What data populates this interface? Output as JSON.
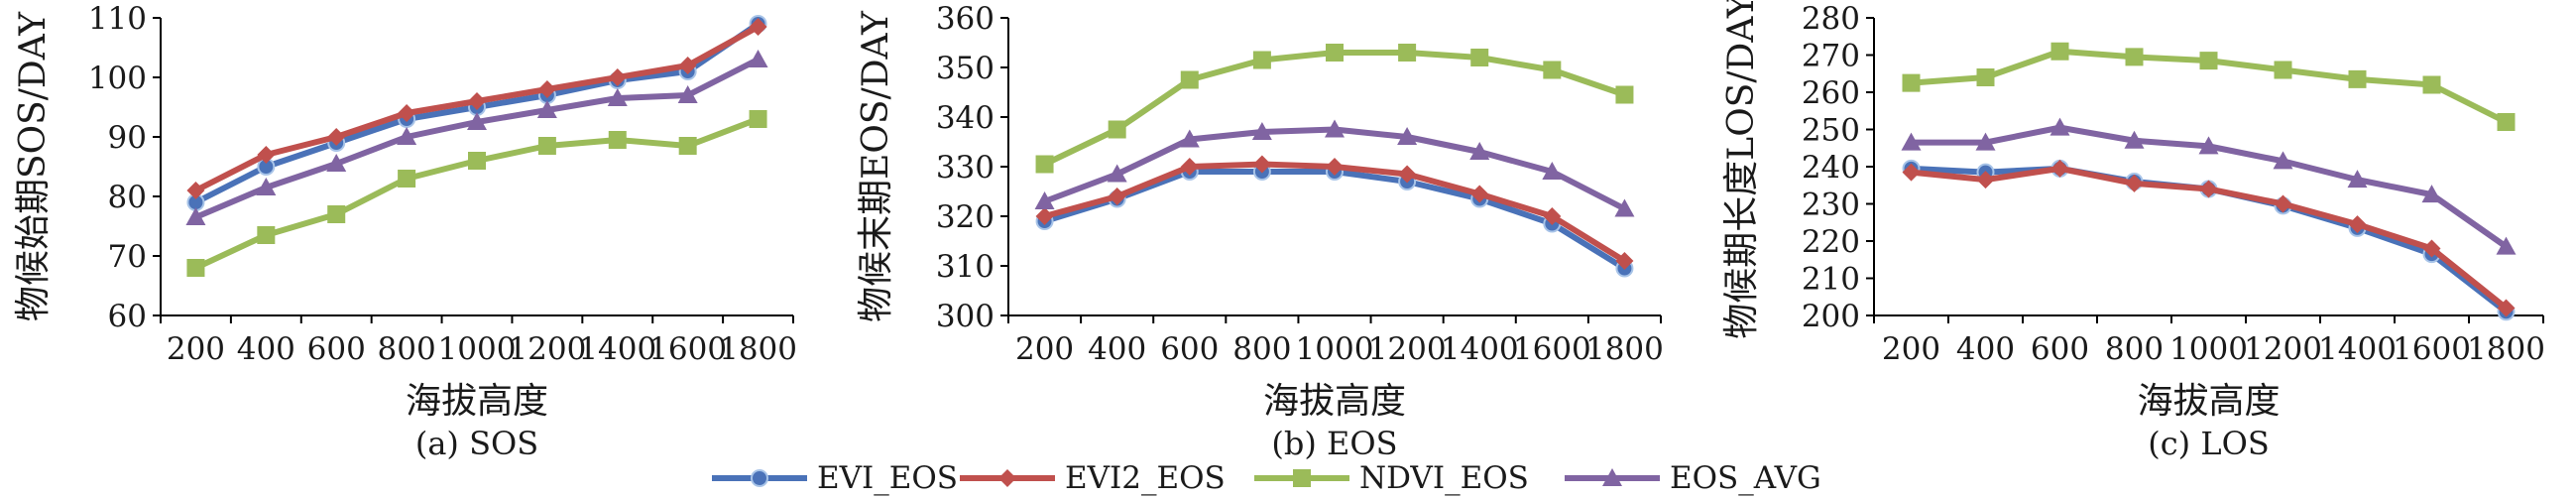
{
  "chart_data": [
    {
      "type": "line",
      "caption": "(a) SOS",
      "xlabel": "海拔高度",
      "ylabel": "物候始期SOS/DAY",
      "x": [
        200,
        400,
        600,
        800,
        1000,
        1200,
        1400,
        1600,
        1800
      ],
      "ylim": [
        60,
        110
      ],
      "yticks": [
        60,
        70,
        80,
        90,
        100,
        110
      ],
      "grid": false,
      "series": [
        {
          "name": "EVI_EOS",
          "values": [
            79,
            85,
            89,
            93,
            95,
            97,
            99.5,
            101,
            109
          ]
        },
        {
          "name": "EVI2_EOS",
          "values": [
            81,
            87,
            90,
            94,
            96,
            98,
            100,
            102,
            108.5
          ]
        },
        {
          "name": "NDVI_EOS",
          "values": [
            68,
            73.5,
            77,
            83,
            86,
            88.5,
            89.5,
            88.5,
            93
          ]
        },
        {
          "name": "EOS_AVG",
          "values": [
            76.5,
            81.5,
            85.5,
            90,
            92.5,
            94.5,
            96.5,
            97,
            103
          ]
        }
      ]
    },
    {
      "type": "line",
      "caption": "(b) EOS",
      "xlabel": "海拔高度",
      "ylabel": "物候末期EOS/DAY",
      "x": [
        200,
        400,
        600,
        800,
        1000,
        1200,
        1400,
        1600,
        1800
      ],
      "ylim": [
        300,
        360
      ],
      "yticks": [
        300,
        310,
        320,
        330,
        340,
        350,
        360
      ],
      "grid": false,
      "series": [
        {
          "name": "EVI_EOS",
          "values": [
            319,
            323.5,
            329,
            329,
            329,
            327,
            323.5,
            318.5,
            309.5
          ]
        },
        {
          "name": "EVI2_EOS",
          "values": [
            320,
            324,
            330,
            330.5,
            330,
            328.5,
            324.5,
            320,
            311
          ]
        },
        {
          "name": "NDVI_EOS",
          "values": [
            330.5,
            337.5,
            347.5,
            351.5,
            353,
            353,
            352,
            349.5,
            344.5
          ]
        },
        {
          "name": "EOS_AVG",
          "values": [
            323,
            328.5,
            335.5,
            337,
            337.5,
            336,
            333,
            329,
            321.5
          ]
        }
      ]
    },
    {
      "type": "line",
      "caption": "(c) LOS",
      "xlabel": "海拔高度",
      "ylabel": "物候期长度LOS/DAY",
      "x": [
        200,
        400,
        600,
        800,
        1000,
        1200,
        1400,
        1600,
        1800
      ],
      "ylim": [
        200,
        280
      ],
      "yticks": [
        200,
        210,
        220,
        230,
        240,
        250,
        260,
        270,
        280
      ],
      "grid": false,
      "series": [
        {
          "name": "EVI_EOS",
          "values": [
            239.5,
            238.5,
            239.5,
            236,
            234,
            229.5,
            223.5,
            216.5,
            201
          ]
        },
        {
          "name": "EVI2_EOS",
          "values": [
            238.5,
            236.5,
            239.5,
            235.5,
            234,
            230,
            224.5,
            218,
            202
          ]
        },
        {
          "name": "NDVI_EOS",
          "values": [
            262.5,
            264,
            271,
            269.5,
            268.5,
            266,
            263.5,
            262,
            252
          ]
        },
        {
          "name": "EOS_AVG",
          "values": [
            246.5,
            246.5,
            250.5,
            247,
            245.5,
            241.5,
            236.5,
            232.5,
            218.5
          ]
        }
      ]
    }
  ],
  "legend": {
    "placement": "bottom-center",
    "entries": [
      {
        "name": "EVI_EOS",
        "color": "#4a72b8",
        "marker": "circle"
      },
      {
        "name": "EVI2_EOS",
        "color": "#c0504d",
        "marker": "diamond"
      },
      {
        "name": "NDVI_EOS",
        "color": "#9bbb59",
        "marker": "square"
      },
      {
        "name": "EOS_AVG",
        "color": "#8064a2",
        "marker": "triangle"
      }
    ]
  }
}
